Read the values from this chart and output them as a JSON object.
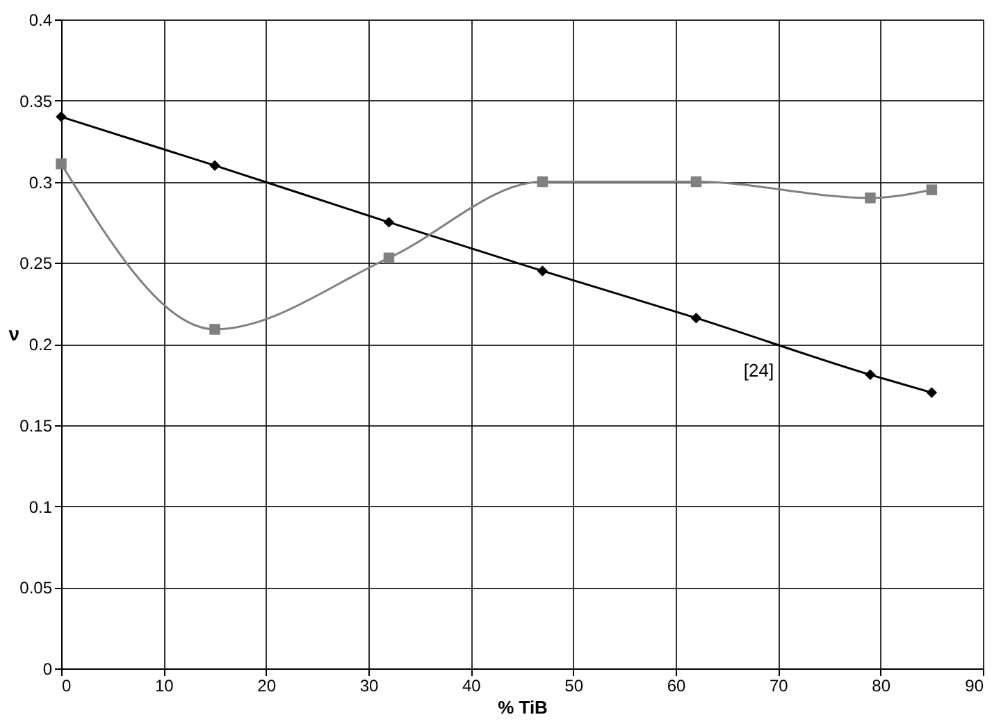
{
  "chart_data": {
    "type": "line",
    "xlabel": "% TiB",
    "ylabel": "ν",
    "x": [
      0,
      15,
      32,
      47,
      62,
      79,
      85
    ],
    "series": [
      {
        "name": "[24]",
        "color": "#000000",
        "marker": "diamond",
        "values": [
          0.34,
          0.31,
          0.275,
          0.245,
          0.216,
          0.181,
          0.17
        ]
      },
      {
        "color": "#808080",
        "marker": "square",
        "values": [
          0.311,
          0.209,
          0.253,
          0.3,
          0.3,
          0.29,
          0.295
        ]
      }
    ],
    "xlim": [
      0,
      90
    ],
    "xticks": [
      0,
      10,
      20,
      30,
      40,
      50,
      60,
      70,
      80,
      90
    ],
    "ylim": [
      0,
      0.4
    ],
    "yticks": [
      0,
      0.05,
      0.1,
      0.15,
      0.2,
      0.25,
      0.3,
      0.35,
      0.4
    ],
    "grid": true
  }
}
